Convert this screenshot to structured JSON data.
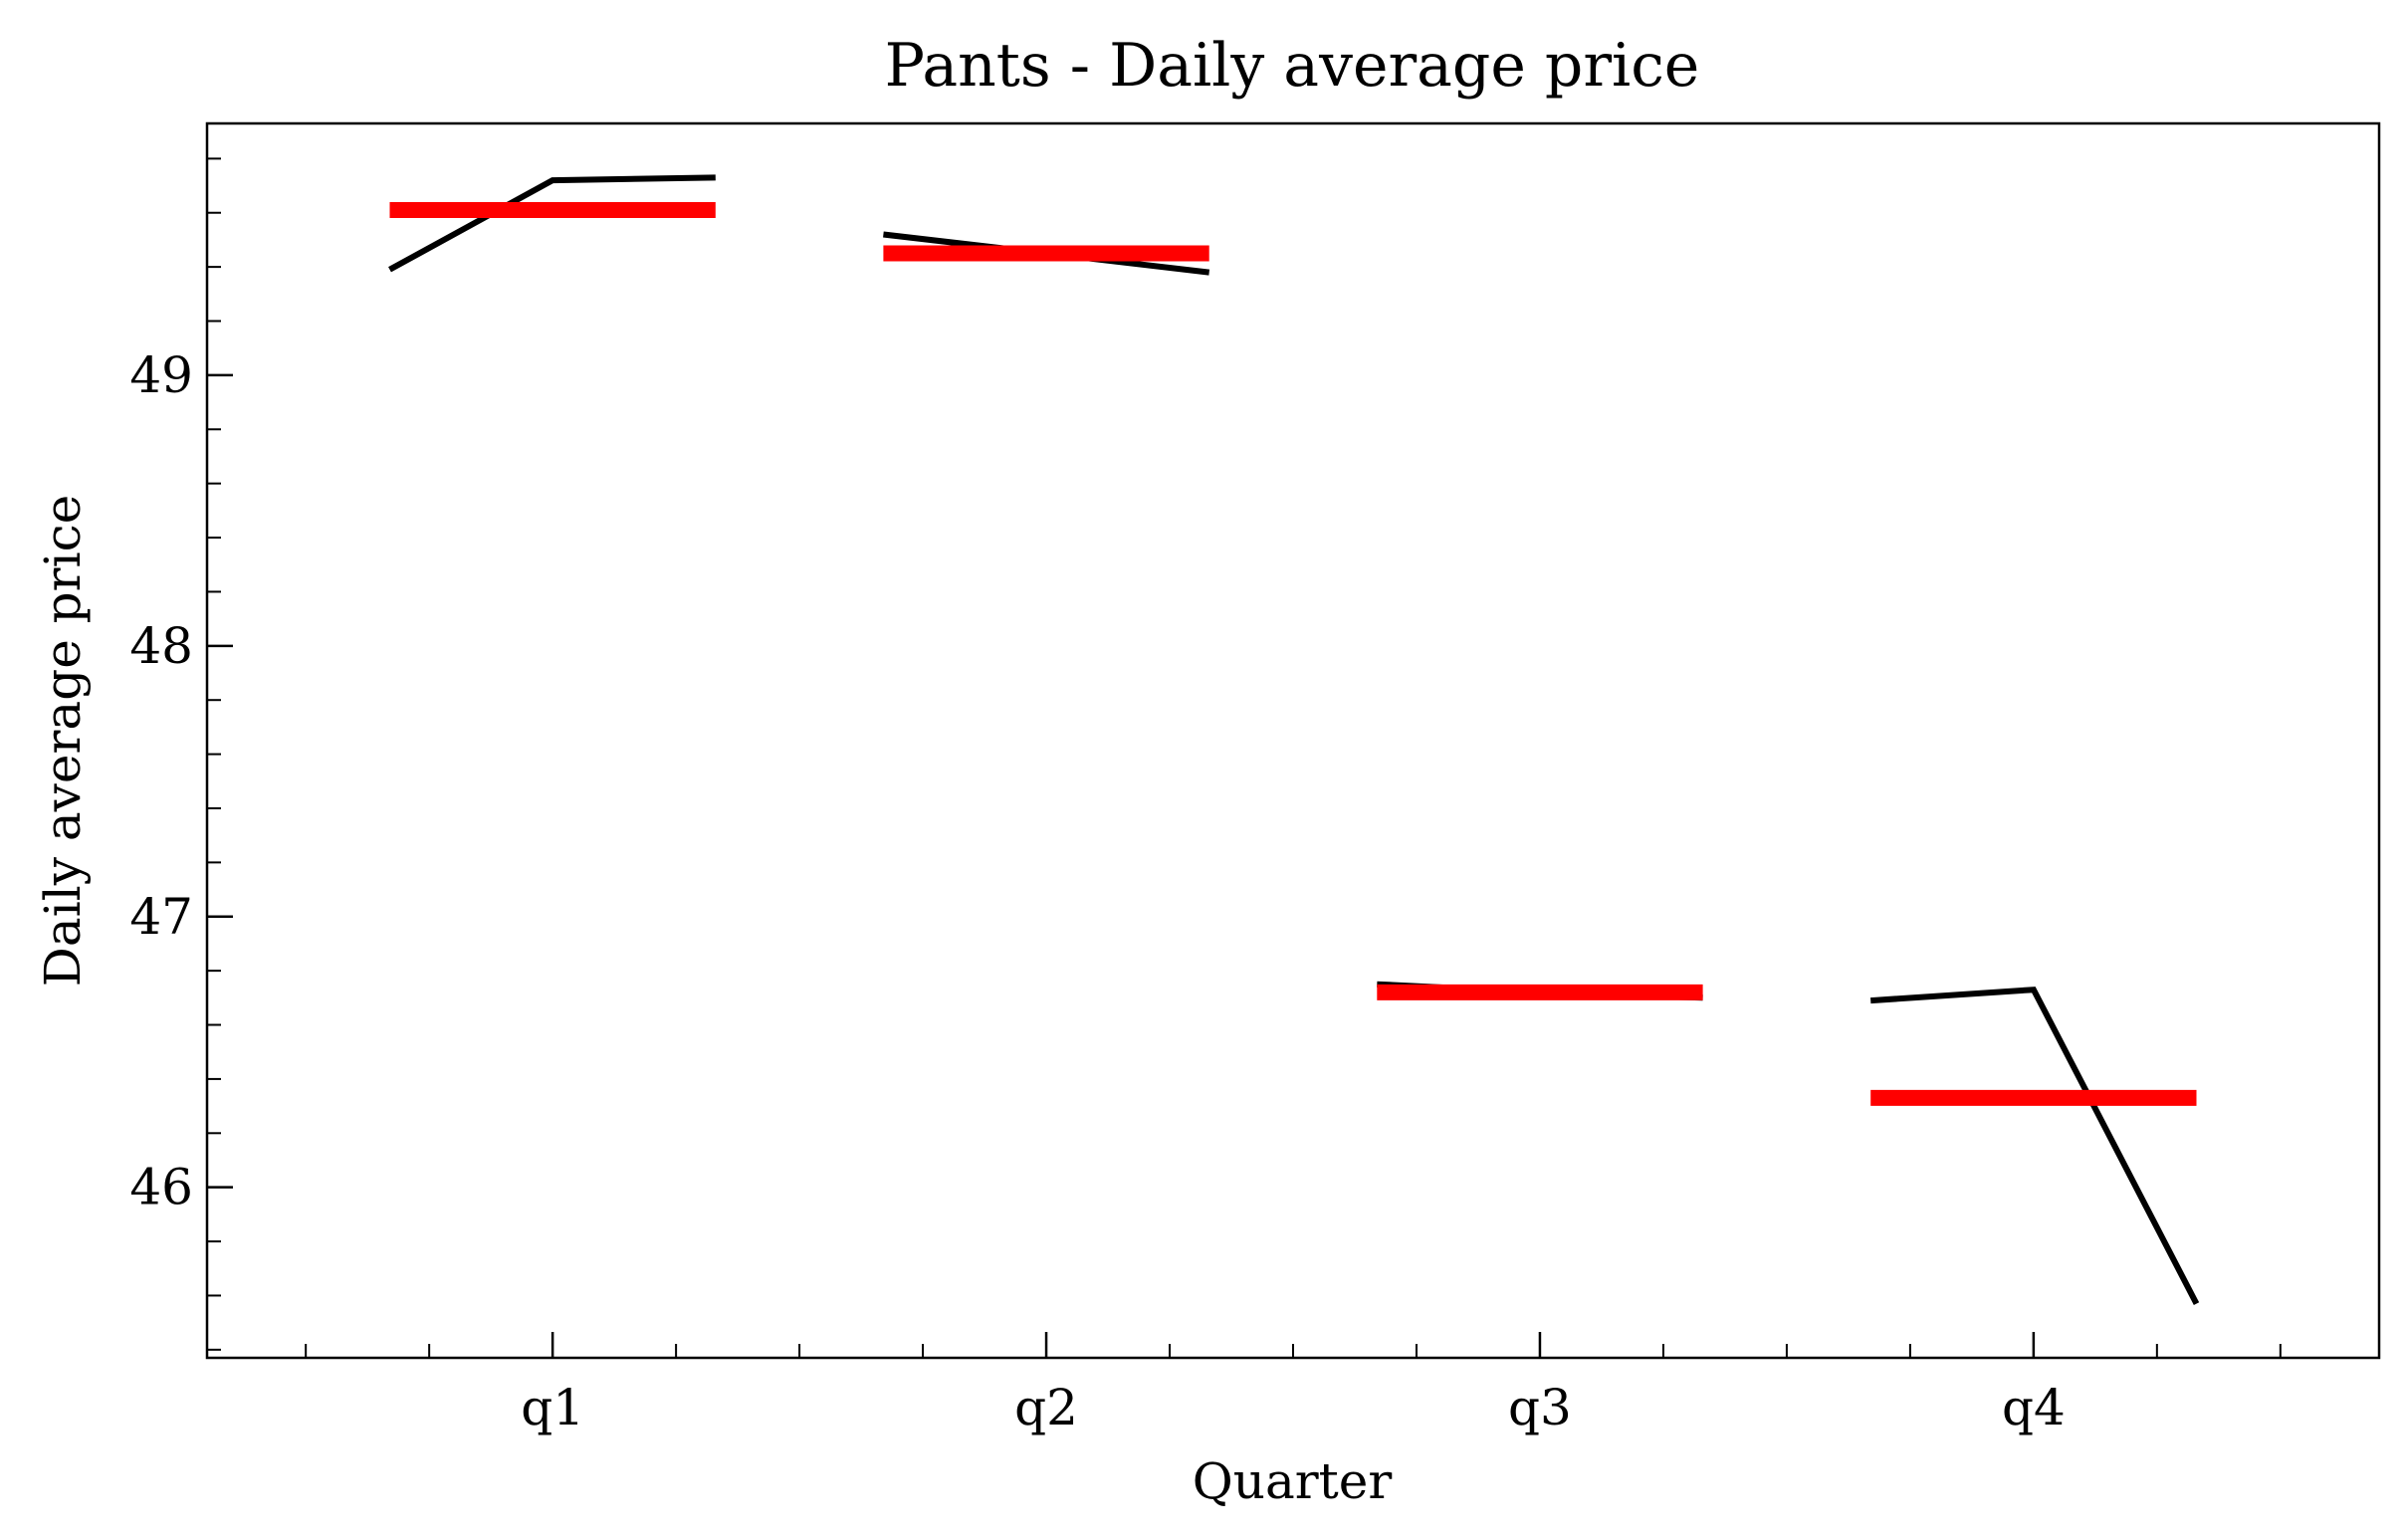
{
  "chart_data": {
    "type": "line",
    "title": "Pants - Daily average price",
    "xlabel": "Quarter",
    "ylabel": "Daily average price",
    "categories": [
      "q1",
      "q2",
      "q3",
      "q4"
    ],
    "yticks": [
      "46",
      "47",
      "48",
      "49"
    ],
    "ylim": [
      45.37,
      49.93
    ],
    "xlim": [
      -0.7,
      3.7
    ],
    "grid": false,
    "series": [
      {
        "values": [
          [
            [
              -0.33,
              49.39
            ],
            [
              0.0,
              49.72
            ],
            [
              0.33,
              49.73
            ]
          ],
          [
            [
              0.67,
              49.52
            ],
            [
              1.0,
              49.45
            ],
            [
              1.33,
              49.38
            ]
          ],
          [
            [
              1.67,
              46.75
            ],
            [
              2.0,
              46.72
            ],
            [
              2.33,
              46.7
            ]
          ],
          [
            [
              2.67,
              46.69
            ],
            [
              3.0,
              46.73
            ],
            [
              3.33,
              45.57
            ]
          ]
        ],
        "color": "#000000"
      },
      {
        "values": [
          [
            [
              -0.33,
              49.61
            ],
            [
              0.33,
              49.61
            ]
          ],
          [
            [
              0.67,
              49.45
            ],
            [
              1.33,
              49.45
            ]
          ],
          [
            [
              1.67,
              46.72
            ],
            [
              2.33,
              46.72
            ]
          ],
          [
            [
              2.67,
              46.33
            ],
            [
              3.33,
              46.33
            ]
          ]
        ],
        "color": "#ff0000"
      }
    ]
  }
}
